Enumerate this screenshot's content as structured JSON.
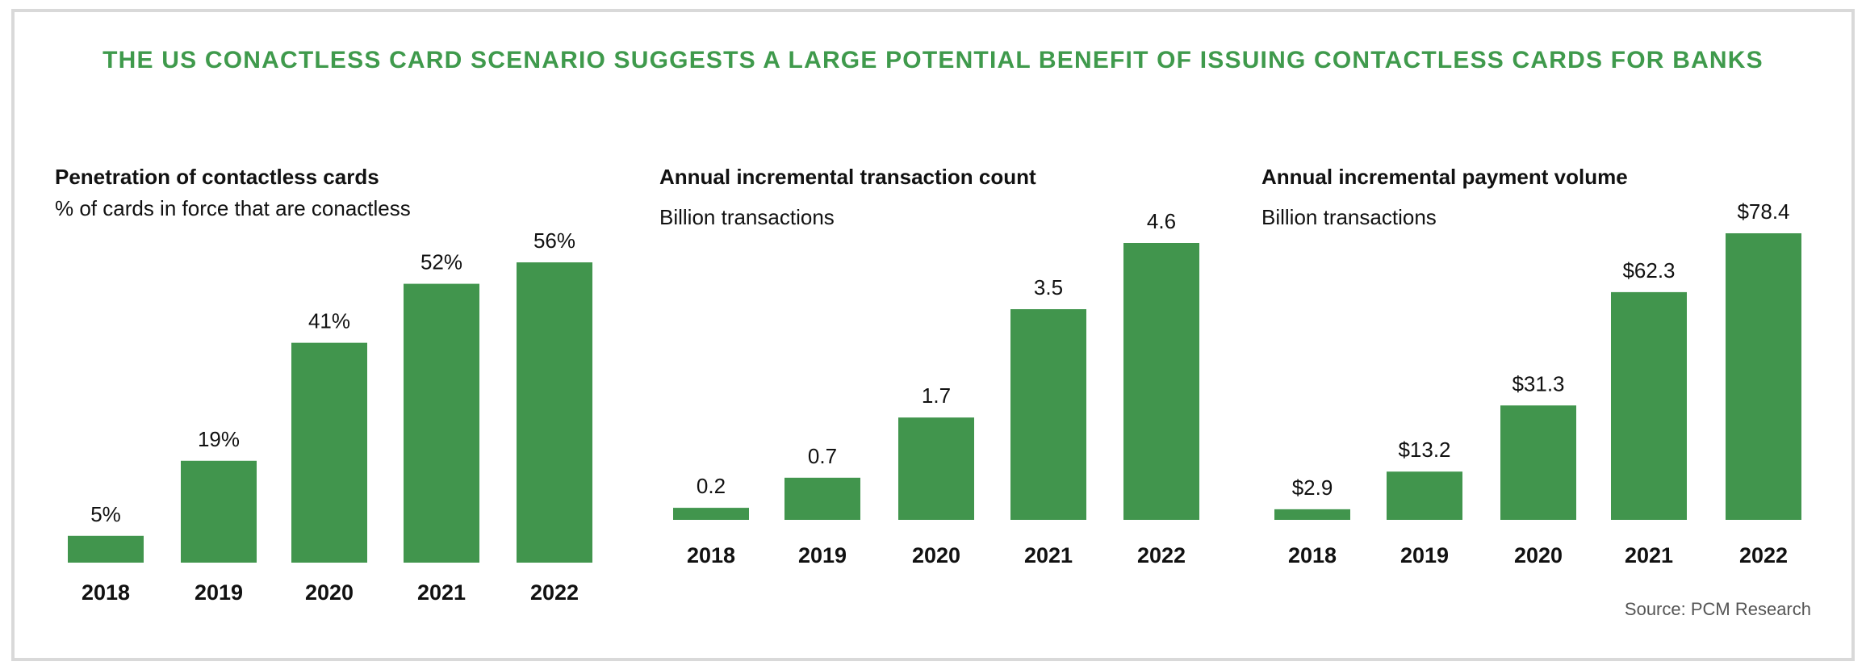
{
  "header": {
    "title": "THE US CONACTLESS CARD SCENARIO SUGGESTS A LARGE POTENTIAL BENEFIT OF ISSUING CONTACTLESS CARDS FOR BANKS"
  },
  "colors": {
    "accent": "#3f9a4c",
    "bar": "#41954d",
    "frame": "#d9d9d9"
  },
  "source": "Source: PCM Research",
  "chart_data": [
    {
      "type": "bar",
      "title": "Penetration of contactless cards",
      "subtitle": "% of cards in force that are conactless",
      "xlabel": "",
      "ylabel": "",
      "categories": [
        "2018",
        "2019",
        "2020",
        "2021",
        "2022"
      ],
      "values": [
        5,
        19,
        41,
        52,
        56
      ],
      "labels": [
        "5%",
        "19%",
        "41%",
        "52%",
        "56%"
      ],
      "unit": "%",
      "grid": false,
      "legend": "none"
    },
    {
      "type": "bar",
      "title": "Annual incremental transaction count",
      "subtitle": "Billion transactions",
      "xlabel": "",
      "ylabel": "",
      "categories": [
        "2018",
        "2019",
        "2020",
        "2021",
        "2022"
      ],
      "values": [
        0.2,
        0.7,
        1.7,
        3.5,
        4.6
      ],
      "labels": [
        "0.2",
        "0.7",
        "1.7",
        "3.5",
        "4.6"
      ],
      "unit": "billion transactions",
      "grid": false,
      "legend": "none"
    },
    {
      "type": "bar",
      "title": "Annual incremental payment volume",
      "subtitle": "Billion transactions",
      "xlabel": "",
      "ylabel": "",
      "categories": [
        "2018",
        "2019",
        "2020",
        "2021",
        "2022"
      ],
      "values": [
        2.9,
        13.2,
        31.3,
        62.3,
        78.4
      ],
      "labels": [
        "$2.9",
        "$13.2",
        "$31.3",
        "$62.3",
        "$78.4"
      ],
      "unit": "billion USD",
      "grid": false,
      "legend": "none"
    }
  ]
}
